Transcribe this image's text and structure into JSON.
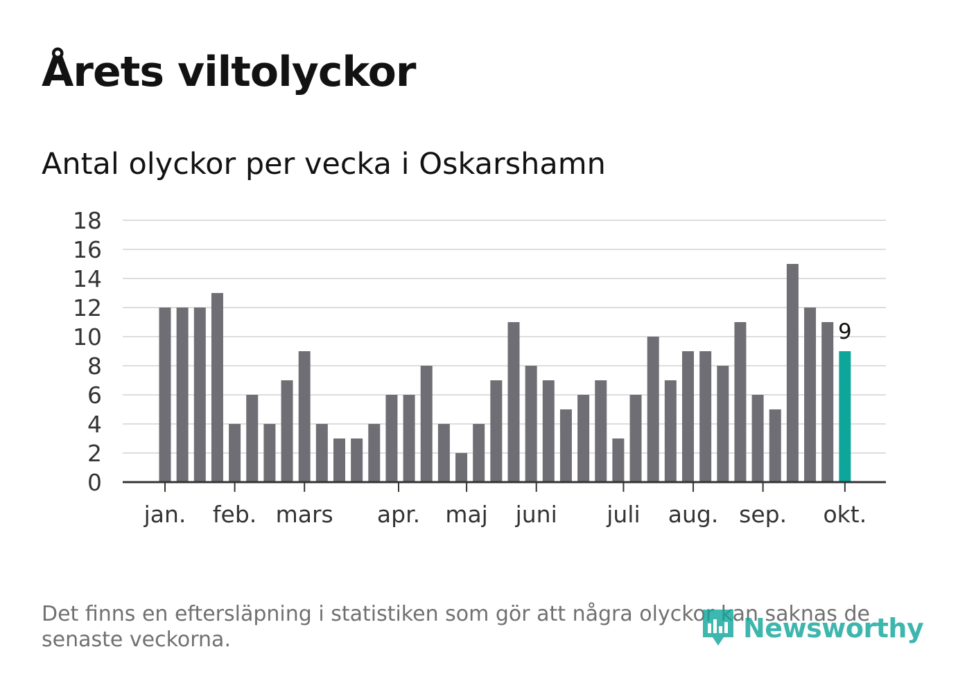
{
  "title": "Årets viltolyckor",
  "subtitle": "Antal olyckor per vecka i Oskarshamn",
  "footnote": "Det finns en eftersläpning i statistiken som gör att några olyckor kan saknas de senaste veckorna.",
  "brand": {
    "name": "Newsworthy",
    "icon": "bar-chart-logo-icon"
  },
  "colors": {
    "bar": "#6f6e74",
    "highlight": "#0ea59a",
    "grid": "#dddddd",
    "axis": "#333333",
    "brand": "#0ea59a"
  },
  "chart_data": {
    "type": "bar",
    "title": "Antal olyckor per vecka i Oskarshamn",
    "xlabel": "",
    "ylabel": "",
    "ylim": [
      0,
      18
    ],
    "yticks": [
      0,
      2,
      4,
      6,
      8,
      10,
      12,
      14,
      16,
      18
    ],
    "grid": true,
    "values": [
      12,
      12,
      12,
      13,
      4,
      6,
      4,
      7,
      9,
      4,
      3,
      3,
      4,
      6,
      6,
      8,
      4,
      2,
      4,
      7,
      11,
      8,
      7,
      5,
      6,
      7,
      3,
      6,
      10,
      7,
      9,
      9,
      8,
      11,
      6,
      5,
      15,
      12,
      11,
      9
    ],
    "month_ticks": [
      {
        "label": "jan.",
        "index": 0
      },
      {
        "label": "feb.",
        "index": 4
      },
      {
        "label": "mars",
        "index": 8
      },
      {
        "label": "apr.",
        "index": 13.4
      },
      {
        "label": "maj",
        "index": 17.3
      },
      {
        "label": "juni",
        "index": 21.3
      },
      {
        "label": "juli",
        "index": 26.3
      },
      {
        "label": "aug.",
        "index": 30.3
      },
      {
        "label": "sep.",
        "index": 34.3
      },
      {
        "label": "okt.",
        "index": 39
      }
    ],
    "highlight_index": 39,
    "highlight_label": "9"
  }
}
